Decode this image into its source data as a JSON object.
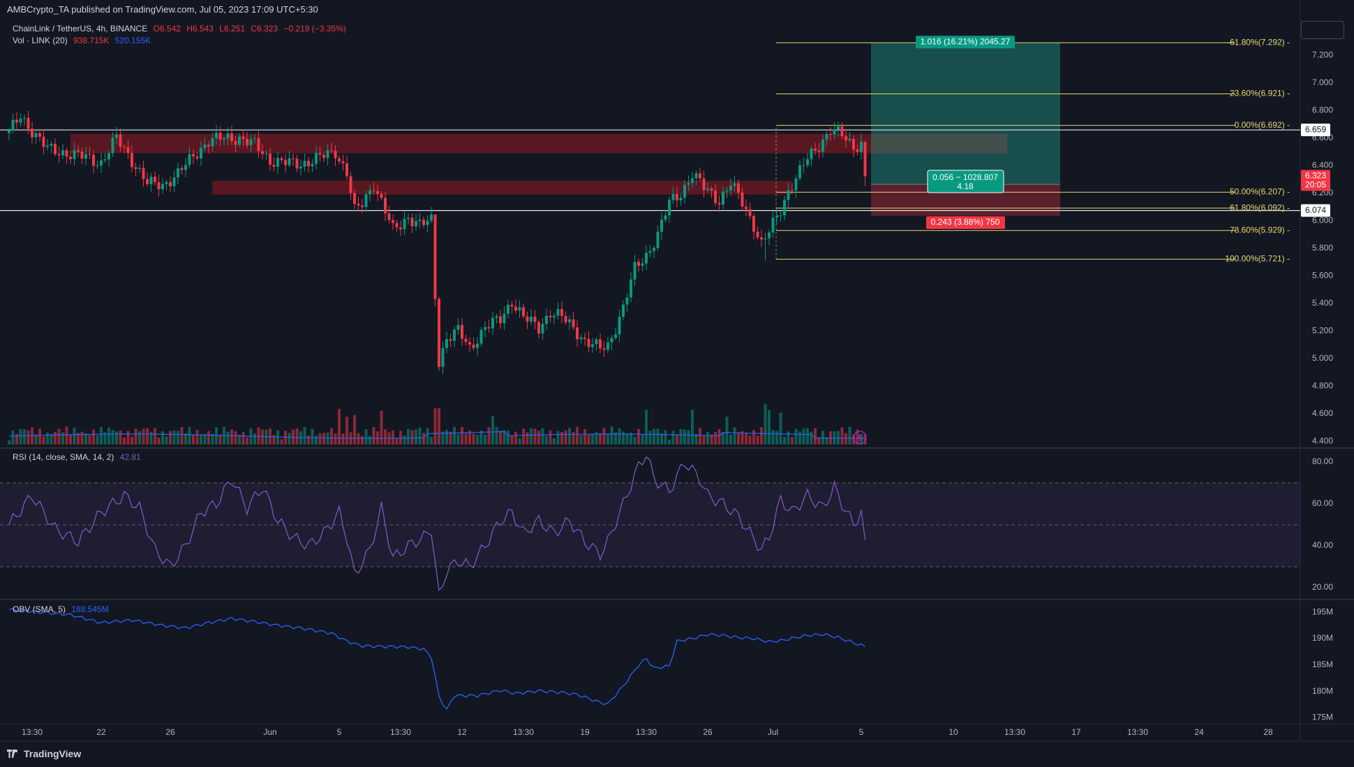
{
  "header": {
    "published": "AMBCrypto_TA published on TradingView.com, Jul 05, 2023 17:09 UTC+5:30"
  },
  "symbol": {
    "name": "ChainLink / TetherUS, 4h, BINANCE",
    "open": "O6.542",
    "high": "H6.543",
    "low": "L6.251",
    "close": "C6.323",
    "change": "−0.219 (−3.35%)"
  },
  "volume_legend": {
    "label": "Vol · LINK (20)",
    "v1": "938.715K",
    "v2": "520.155K"
  },
  "rsi_legend": {
    "label": "RSI (14, close, SMA, 14, 2)",
    "value": "42.81"
  },
  "obv_legend": {
    "label": "OBV (SMA, 5)",
    "value": "188.545M"
  },
  "brand": "TradingView",
  "colors": {
    "background": "#131722",
    "up": "#089981",
    "down": "#f23645",
    "fib": "#e6d86e",
    "rsi": "#7e57c2",
    "obv": "#2962ff",
    "zone": "#801922",
    "target": "#22ab94",
    "stop": "#f23645"
  },
  "chart_data": {
    "type": "candlestick",
    "symbol": "ChainLink / TetherUS",
    "timeframe": "4h",
    "exchange": "BINANCE",
    "price_axis_ticks": [
      "7.200",
      "7.000",
      "6.800",
      "6.600",
      "6.400",
      "6.200",
      "6.000",
      "5.800",
      "5.600",
      "5.400",
      "5.200",
      "5.000",
      "4.800",
      "4.600",
      "4.400"
    ],
    "price_range": [
      4.36,
      7.44
    ],
    "x_axis_labels": [
      {
        "i": 6,
        "label": "13:30"
      },
      {
        "i": 24,
        "label": "22"
      },
      {
        "i": 42,
        "label": "26"
      },
      {
        "i": 68,
        "label": "Jun"
      },
      {
        "i": 86,
        "label": "5"
      },
      {
        "i": 102,
        "label": "13:30"
      },
      {
        "i": 118,
        "label": "12"
      },
      {
        "i": 134,
        "label": "13:30"
      },
      {
        "i": 150,
        "label": "19"
      },
      {
        "i": 166,
        "label": "13:30"
      },
      {
        "i": 182,
        "label": "26"
      },
      {
        "i": 199,
        "label": "Jul"
      },
      {
        "i": 222,
        "label": "5"
      },
      {
        "i": 246,
        "label": "10"
      },
      {
        "i": 262,
        "label": "13:30"
      },
      {
        "i": 278,
        "label": "17"
      },
      {
        "i": 294,
        "label": "13:30"
      },
      {
        "i": 310,
        "label": "24"
      },
      {
        "i": 328,
        "label": "28"
      }
    ],
    "price_anchors": [
      [
        0,
        6.64
      ],
      [
        3,
        6.76
      ],
      [
        7,
        6.62
      ],
      [
        10,
        6.52
      ],
      [
        15,
        6.49
      ],
      [
        20,
        6.46
      ],
      [
        24,
        6.42
      ],
      [
        28,
        6.6
      ],
      [
        32,
        6.44
      ],
      [
        36,
        6.27
      ],
      [
        40,
        6.26
      ],
      [
        44,
        6.34
      ],
      [
        48,
        6.47
      ],
      [
        52,
        6.58
      ],
      [
        56,
        6.6
      ],
      [
        60,
        6.6
      ],
      [
        64,
        6.55
      ],
      [
        68,
        6.44
      ],
      [
        72,
        6.42
      ],
      [
        76,
        6.41
      ],
      [
        80,
        6.45
      ],
      [
        85,
        6.5
      ],
      [
        88,
        6.35
      ],
      [
        90,
        6.07
      ],
      [
        92,
        6.12
      ],
      [
        95,
        6.27
      ],
      [
        97,
        6.14
      ],
      [
        100,
        5.93
      ],
      [
        102,
        5.97
      ],
      [
        104,
        6.03
      ],
      [
        107,
        5.97
      ],
      [
        110,
        6.0
      ],
      [
        111,
        5.45
      ],
      [
        112,
        4.98
      ],
      [
        114,
        5.15
      ],
      [
        117,
        5.2
      ],
      [
        120,
        5.07
      ],
      [
        124,
        5.23
      ],
      [
        128,
        5.28
      ],
      [
        131,
        5.42
      ],
      [
        134,
        5.3
      ],
      [
        138,
        5.22
      ],
      [
        141,
        5.34
      ],
      [
        144,
        5.3
      ],
      [
        147,
        5.22
      ],
      [
        150,
        5.13
      ],
      [
        154,
        5.07
      ],
      [
        156,
        5.09
      ],
      [
        160,
        5.37
      ],
      [
        163,
        5.65
      ],
      [
        166,
        5.75
      ],
      [
        169,
        5.9
      ],
      [
        172,
        6.13
      ],
      [
        175,
        6.2
      ],
      [
        178,
        6.34
      ],
      [
        181,
        6.24
      ],
      [
        185,
        6.15
      ],
      [
        188,
        6.27
      ],
      [
        191,
        6.13
      ],
      [
        194,
        5.97
      ],
      [
        196,
        5.83
      ],
      [
        198,
        5.92
      ],
      [
        201,
        6.08
      ],
      [
        203,
        6.22
      ],
      [
        205,
        6.31
      ],
      [
        208,
        6.45
      ],
      [
        211,
        6.55
      ],
      [
        214,
        6.66
      ],
      [
        217,
        6.62
      ],
      [
        220,
        6.54
      ],
      [
        222,
        6.56
      ],
      [
        223,
        6.32
      ]
    ],
    "candles_count": 224,
    "price_labels": [
      {
        "value": 6.659,
        "label": "6.659",
        "style": "white"
      },
      {
        "value": 6.323,
        "label": "6.323",
        "sub": "20:05",
        "style": "red"
      },
      {
        "value": 6.074,
        "label": "6.074",
        "style": "white"
      }
    ],
    "horizontal_levels": [
      6.659,
      6.074
    ],
    "supply_zones": [
      {
        "from_i": 16,
        "to_i": 260,
        "high": 6.63,
        "low": 6.49
      },
      {
        "from_i": 53,
        "to_i": 204,
        "high": 6.29,
        "low": 6.19
      }
    ],
    "fibonacci": {
      "from_i": 111,
      "to_i": 223,
      "levels": [
        {
          "ratio": "-61.80%",
          "price": 7.292,
          "label": "-61.80%(7.292)"
        },
        {
          "ratio": "-23.60%",
          "price": 6.921,
          "label": "-23.60%(6.921)"
        },
        {
          "ratio": "0.00%",
          "price": 6.692,
          "label": "0.00%(6.692)"
        },
        {
          "ratio": "50.00%",
          "price": 6.207,
          "label": "50.00%(6.207)"
        },
        {
          "ratio": "61.80%",
          "price": 6.092,
          "label": "61.80%(6.092)"
        },
        {
          "ratio": "78.60%",
          "price": 5.929,
          "label": "78.60%(5.929)"
        },
        {
          "ratio": "100.00%",
          "price": 5.721,
          "label": "100.00%(5.721)"
        }
      ]
    },
    "long_position": {
      "entry": 6.264,
      "target": 7.292,
      "stop": 6.035,
      "target_label": "1.016 (16.21%) 2045.27",
      "entry_label": [
        "0.056 − 1028.807",
        "4.18"
      ],
      "stop_label": "0.243 (3.88%) 750"
    },
    "volume_axis_note": "volume bars at bottom of main pane with SMA(20)",
    "rsi": {
      "ticks": [
        "80.00",
        "60.00",
        "40.00",
        "20.00"
      ],
      "range": [
        14,
        86
      ],
      "band": [
        30,
        70
      ],
      "mid": 50,
      "anchors": [
        [
          0,
          50
        ],
        [
          6,
          64
        ],
        [
          12,
          48
        ],
        [
          18,
          42
        ],
        [
          24,
          56
        ],
        [
          30,
          64
        ],
        [
          34,
          58
        ],
        [
          38,
          38
        ],
        [
          42,
          30
        ],
        [
          46,
          40
        ],
        [
          50,
          56
        ],
        [
          54,
          60
        ],
        [
          58,
          72
        ],
        [
          62,
          58
        ],
        [
          66,
          68
        ],
        [
          70,
          52
        ],
        [
          74,
          44
        ],
        [
          78,
          40
        ],
        [
          82,
          46
        ],
        [
          86,
          56
        ],
        [
          88,
          44
        ],
        [
          90,
          26
        ],
        [
          94,
          38
        ],
        [
          97,
          58
        ],
        [
          100,
          34
        ],
        [
          104,
          40
        ],
        [
          108,
          44
        ],
        [
          110,
          48
        ],
        [
          112,
          16
        ],
        [
          114,
          28
        ],
        [
          117,
          33
        ],
        [
          120,
          30
        ],
        [
          124,
          40
        ],
        [
          128,
          52
        ],
        [
          131,
          56
        ],
        [
          134,
          46
        ],
        [
          138,
          52
        ],
        [
          142,
          46
        ],
        [
          146,
          52
        ],
        [
          150,
          42
        ],
        [
          154,
          36
        ],
        [
          156,
          42
        ],
        [
          160,
          60
        ],
        [
          164,
          78
        ],
        [
          166,
          84
        ],
        [
          168,
          72
        ],
        [
          172,
          66
        ],
        [
          176,
          80
        ],
        [
          180,
          72
        ],
        [
          182,
          64
        ],
        [
          186,
          60
        ],
        [
          190,
          54
        ],
        [
          193,
          46
        ],
        [
          196,
          38
        ],
        [
          198,
          44
        ],
        [
          201,
          62
        ],
        [
          204,
          56
        ],
        [
          208,
          64
        ],
        [
          212,
          58
        ],
        [
          215,
          68
        ],
        [
          217,
          60
        ],
        [
          220,
          50
        ],
        [
          222,
          56
        ],
        [
          223,
          42.8
        ]
      ]
    },
    "obv": {
      "ticks": [
        "195M",
        "190M",
        "185M",
        "180M",
        "175M"
      ],
      "range": [
        174,
        197
      ],
      "anchors": [
        [
          0,
          195.5
        ],
        [
          8,
          195
        ],
        [
          16,
          194.5
        ],
        [
          24,
          193
        ],
        [
          32,
          193.5
        ],
        [
          40,
          192.5
        ],
        [
          46,
          192
        ],
        [
          52,
          193
        ],
        [
          58,
          193.8
        ],
        [
          64,
          193.2
        ],
        [
          70,
          192.5
        ],
        [
          76,
          192
        ],
        [
          84,
          191
        ],
        [
          88,
          189.5
        ],
        [
          92,
          188.6
        ],
        [
          98,
          188.5
        ],
        [
          104,
          188.4
        ],
        [
          108,
          188
        ],
        [
          110,
          186.5
        ],
        [
          112,
          179
        ],
        [
          114,
          176.5
        ],
        [
          116,
          179.2
        ],
        [
          122,
          179.2
        ],
        [
          128,
          180.2
        ],
        [
          132,
          179.6
        ],
        [
          138,
          180.1
        ],
        [
          144,
          179.8
        ],
        [
          148,
          179.4
        ],
        [
          154,
          177.9
        ],
        [
          156,
          177.6
        ],
        [
          160,
          181
        ],
        [
          164,
          185
        ],
        [
          166,
          186.2
        ],
        [
          168,
          184.4
        ],
        [
          172,
          184.8
        ],
        [
          174,
          189.5
        ],
        [
          178,
          190
        ],
        [
          182,
          190.8
        ],
        [
          186,
          190.6
        ],
        [
          190,
          190.2
        ],
        [
          194,
          190
        ],
        [
          198,
          189.4
        ],
        [
          201,
          189.6
        ],
        [
          205,
          190.2
        ],
        [
          208,
          190.6
        ],
        [
          212,
          190.8
        ],
        [
          216,
          190.2
        ],
        [
          220,
          189.2
        ],
        [
          223,
          188.5
        ]
      ]
    }
  }
}
